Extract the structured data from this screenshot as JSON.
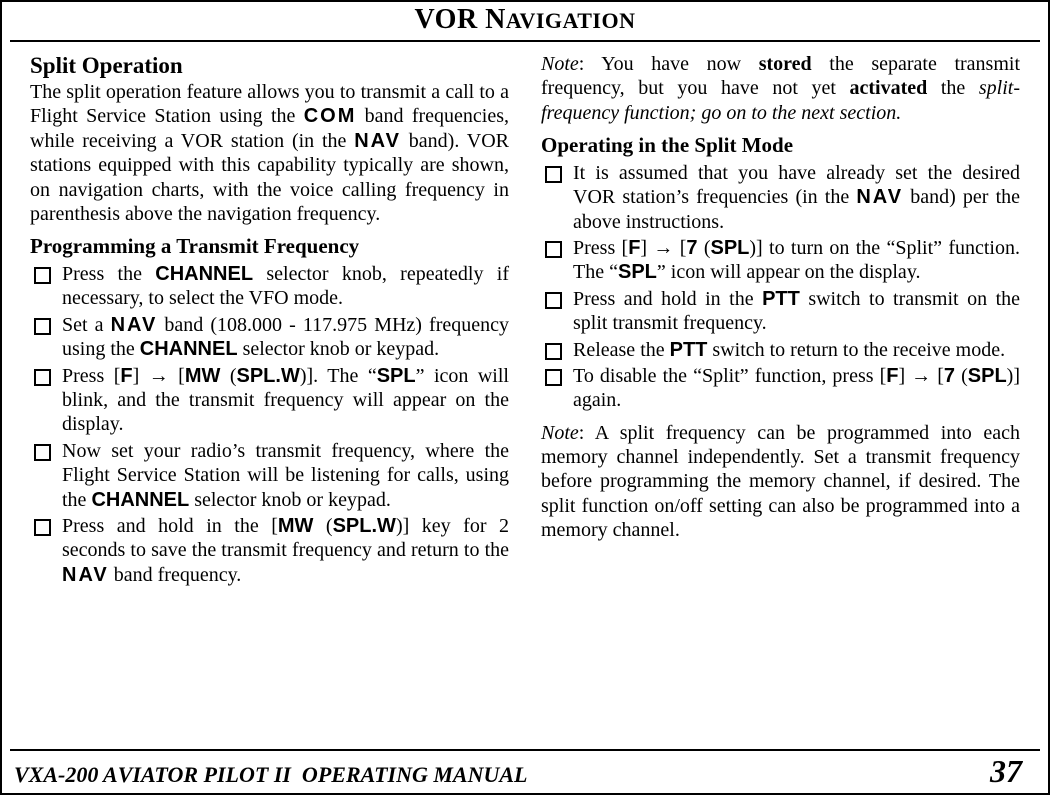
{
  "section_title_html": "VOR N<span class='sc'>AVIGATION</span>",
  "footer": {
    "title_html": "VXA-200 A<span class='sc'>VIATOR</span> P<span class='sc'>ILOT</span> II&nbsp; O<span class='sc'>PERATING</span> M<span class='sc'>ANUAL</span>",
    "page_number": "37"
  },
  "col1": {
    "h2": "Split Operation",
    "intro_html": "The split operation feature allows you to transmit a call to a Flight Service Station using the <span class='mono'>COM</span> band frequencies, while receiving a VOR station (in the <span class='mono'>NAV</span> band). VOR stations equipped with this capability typically are shown, on navigation charts, with the voice calling frequency in parenthesis above the navigation frequency.",
    "h3": "Programming a Transmit Frequency",
    "items": [
      "Press the <span class='sbold'>CHANNEL</span> selector knob, repeatedly if necessary, to select the VFO mode.",
      "Set a <span class='mono'>NAV</span> band (108.000 - 117.975 MHz) frequency using the <span class='sbold'>CHANNEL</span> selector knob or keypad.",
      "Press [<span class='sbold'>F</span>] &#8594; [<span class='sbold'>MW</span> (<span class='sbold'>SPL.W</span>)]. The &ldquo;<span class='sbold'>SPL</span>&rdquo; icon will blink, and the transmit frequency will appear on the display.",
      "Now set your radio&rsquo;s transmit frequency, where the Flight Service Station will be listening for calls, using the <span class='sbold'>CHANNEL</span> selector knob or keypad.",
      "Press and hold in the [<span class='sbold'>MW</span> (<span class='sbold'>SPL.W</span>)] key for 2 seconds to save the transmit frequency and return to the <span class='mono'>NAV</span> band frequency."
    ]
  },
  "col2": {
    "note1_html": "<span class='i'>Note</span>: You have now <span class='b'>stored</span> the separate transmit frequency, but you have not yet <span class='b'>activated</span> the <span class='i'>split-frequency function; go on to the next section.</span>",
    "h3": "Operating in the Split Mode",
    "items": [
      "It is assumed that you have already set the desired VOR station&rsquo;s frequencies (in the <span class='mono'>NAV</span> band) per the above instructions.",
      "Press [<span class='sbold'>F</span>] &#8594; [<span class='sbold'>7</span> (<span class='sbold'>SPL</span>)] to turn on the &ldquo;Split&rdquo; function. The &ldquo;<span class='sbold'>SPL</span>&rdquo; icon will appear on the display.",
      "Press and hold in the <span class='sbold'>PTT</span> switch to transmit on the split transmit frequency.",
      "Release the <span class='sbold'>PTT</span> switch to return to the receive mode.",
      "To disable the &ldquo;Split&rdquo; function, press [<span class='sbold'>F</span>] &#8594; [<span class='sbold'>7</span> (<span class='sbold'>SPL</span>)] again."
    ],
    "note2_html": "<span class='i'>Note</span>: A split frequency can be programmed into each memory channel independently. Set a transmit frequency before programming the memory channel, if desired. The split function on/off setting can also be programmed into a memory channel."
  }
}
